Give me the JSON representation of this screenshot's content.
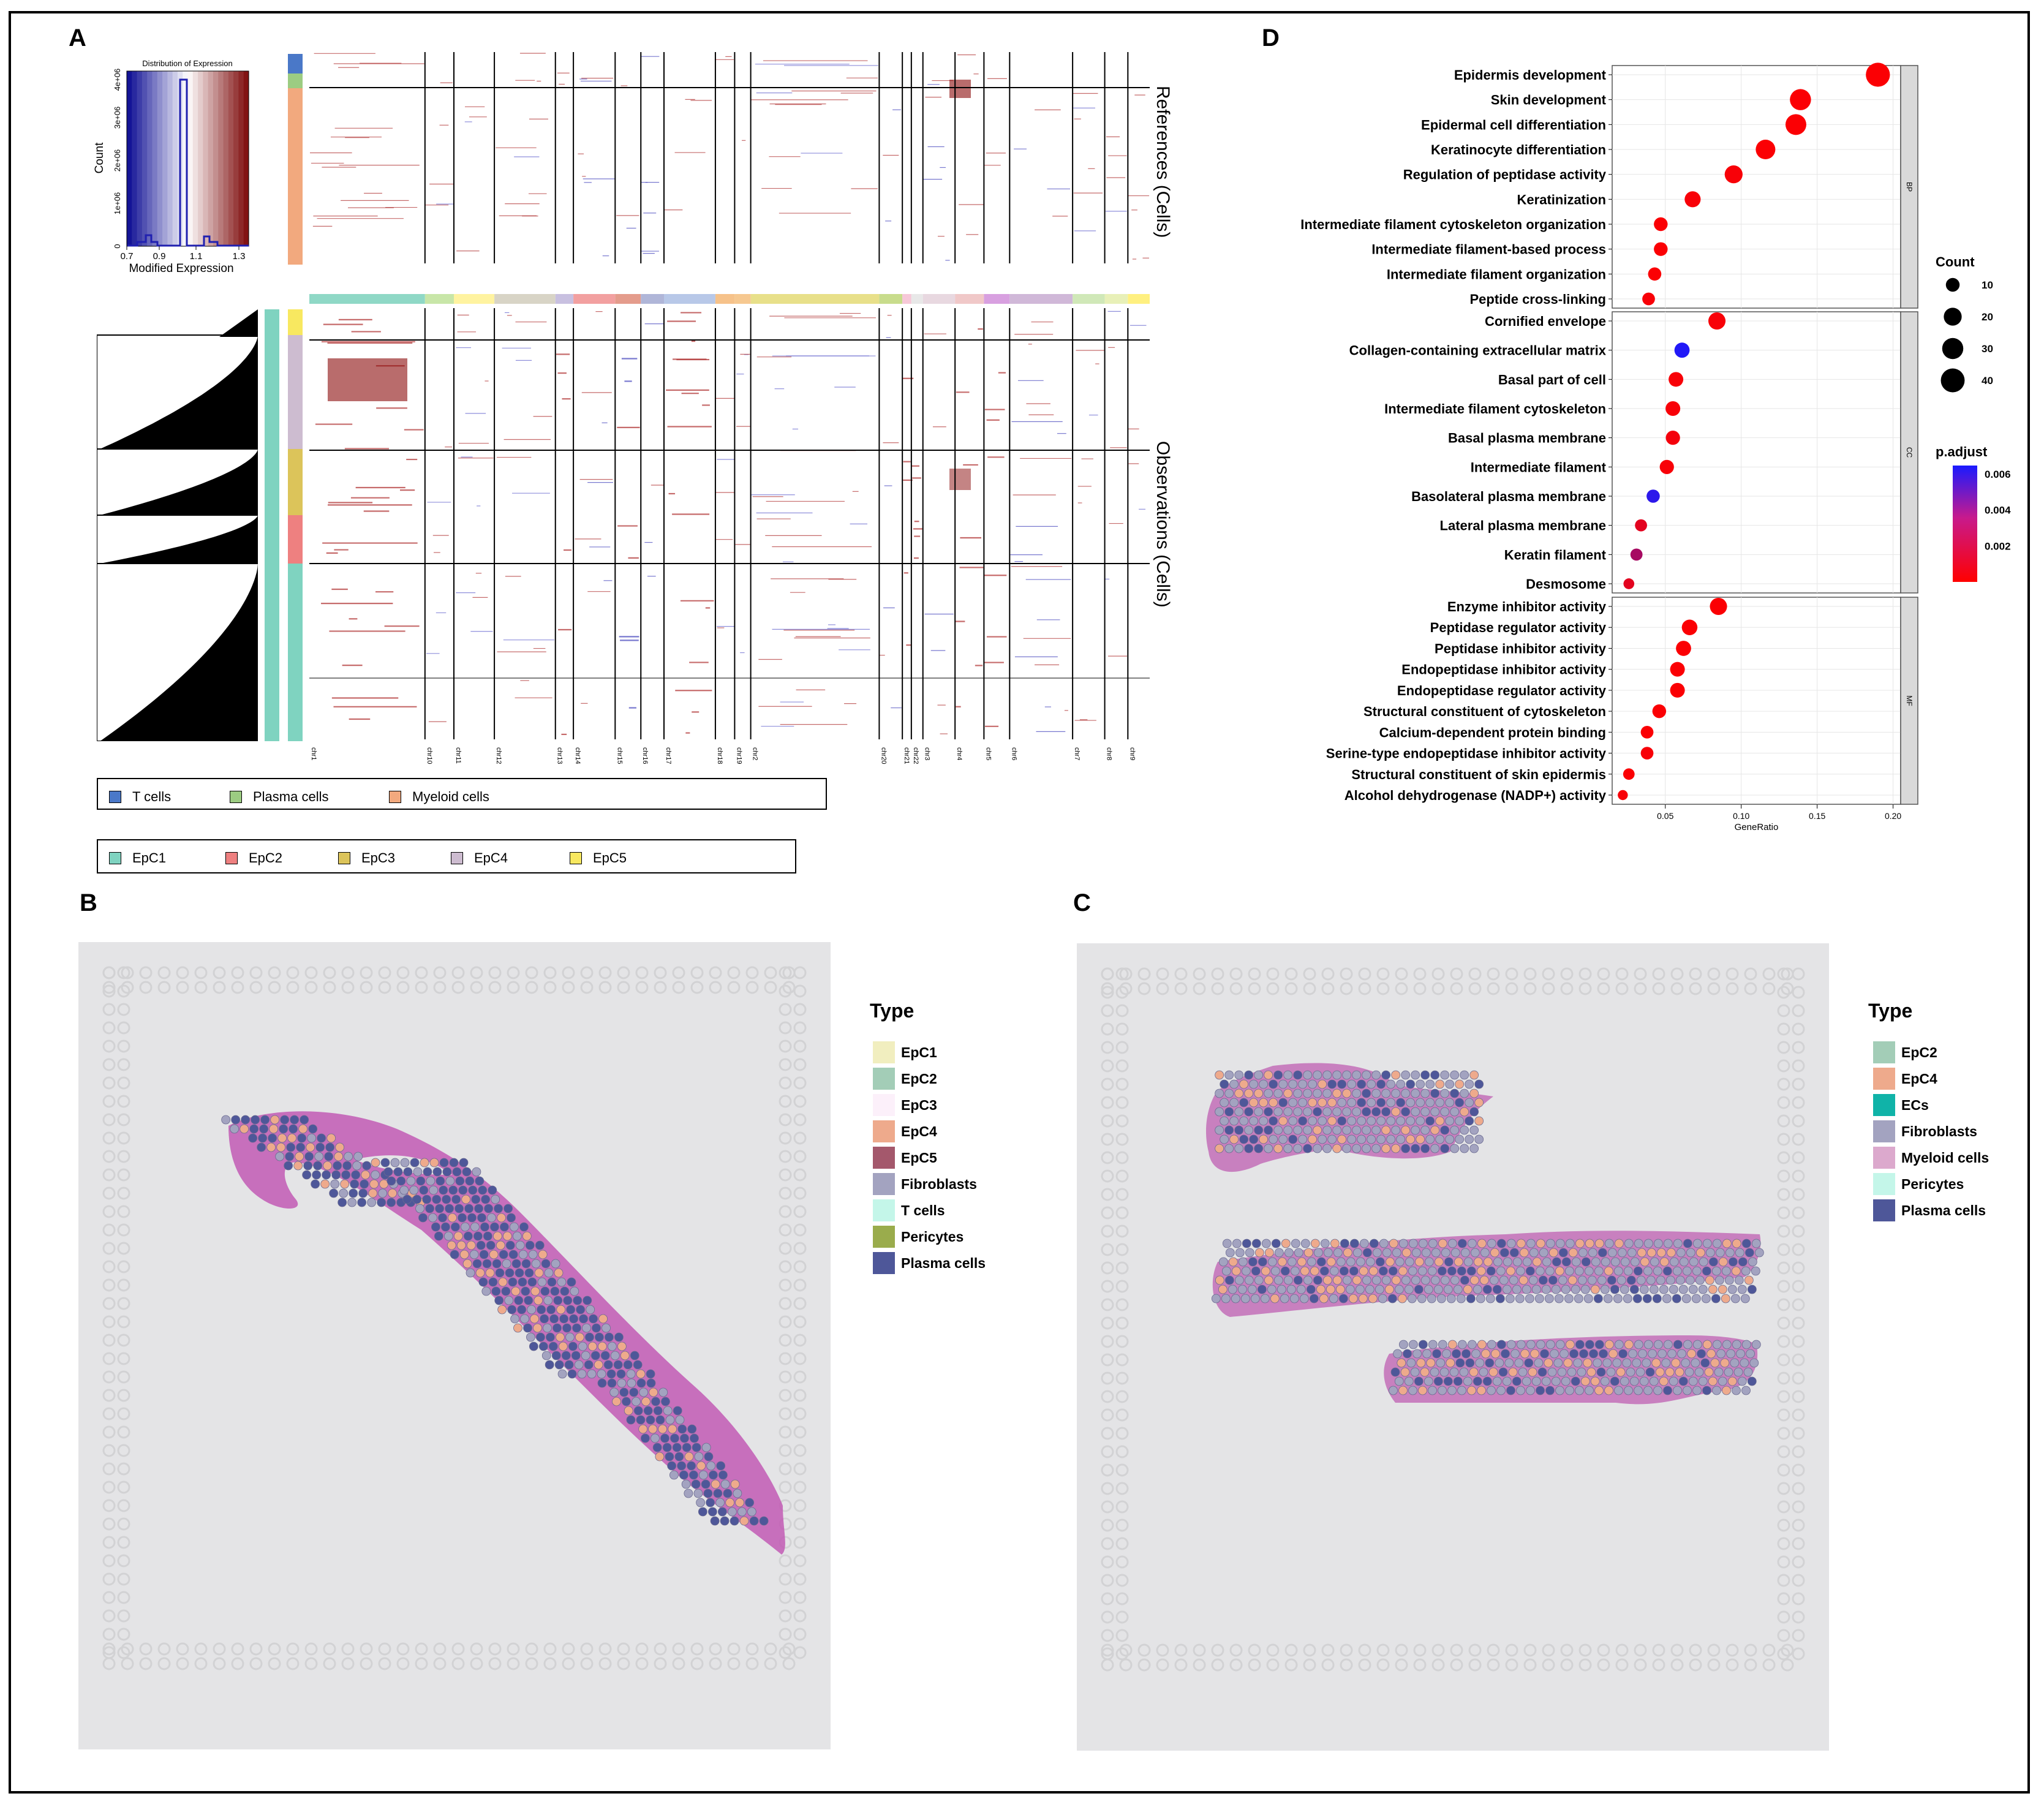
{
  "panel_labels": {
    "a": "A",
    "b": "B",
    "c": "C",
    "d": "D"
  },
  "panel_a": {
    "histogram": {
      "title": "Distribution of Expression",
      "xlabel": "Modified Expression",
      "ylabel": "Count",
      "xticks": [
        "0.7",
        "0.9",
        "1.1",
        "1.3"
      ],
      "yticks": [
        "0",
        "1e+06",
        "2e+06",
        "3e+06",
        "4e+06"
      ]
    },
    "side_labels": {
      "references": "References (Cells)",
      "observations": "Observations (Cells)"
    },
    "chromosomes": [
      "chr1",
      "chr10",
      "chr11",
      "chr12",
      "chr13",
      "chr14",
      "chr15",
      "chr16",
      "chr17",
      "chr18",
      "chr19",
      "chr2",
      "chr20",
      "chr21",
      "chr22",
      "chr3",
      "chr4",
      "chr5",
      "chr6",
      "chr7",
      "chr8",
      "chr9"
    ],
    "reference_legend": [
      {
        "label": "T cells",
        "color": "#4a78c8"
      },
      {
        "label": "Plasma cells",
        "color": "#9ccc82"
      },
      {
        "label": "Myeloid cells",
        "color": "#f2a97e"
      }
    ],
    "observation_legend": [
      {
        "label": "EpC1",
        "color": "#7fd3c0"
      },
      {
        "label": "EpC2",
        "color": "#ee8080"
      },
      {
        "label": "EpC3",
        "color": "#dcc45a"
      },
      {
        "label": "EpC4",
        "color": "#cdbcd0"
      },
      {
        "label": "EpC5",
        "color": "#f8e860"
      }
    ]
  },
  "panel_b": {
    "legend_title": "Type",
    "items": [
      {
        "label": "EpC1",
        "color": "#f1eebf"
      },
      {
        "label": "EpC2",
        "color": "#a3cdb7"
      },
      {
        "label": "EpC3",
        "color": "#fcf0fa"
      },
      {
        "label": "EpC4",
        "color": "#eeaa8c"
      },
      {
        "label": "EpC5",
        "color": "#a4586c"
      },
      {
        "label": "Fibroblasts",
        "color": "#a3a3c0"
      },
      {
        "label": "T cells",
        "color": "#c4f6e9"
      },
      {
        "label": "Pericytes",
        "color": "#9aac4c"
      },
      {
        "label": "Plasma cells",
        "color": "#4e5799"
      }
    ]
  },
  "panel_c": {
    "legend_title": "Type",
    "items": [
      {
        "label": "EpC2",
        "color": "#a3cdb7"
      },
      {
        "label": "EpC4",
        "color": "#eeaa8c"
      },
      {
        "label": "ECs",
        "color": "#10b3a8"
      },
      {
        "label": "Fibroblasts",
        "color": "#a3a3c0"
      },
      {
        "label": "Myeloid cells",
        "color": "#dca9cd"
      },
      {
        "label": "Pericytes",
        "color": "#c4f6e9"
      },
      {
        "label": "Plasma cells",
        "color": "#4e5799"
      }
    ]
  },
  "chart_data": {
    "type": "scatter",
    "xlabel": "GeneRatio",
    "xlim": [
      0.015,
      0.205
    ],
    "xticks": [
      "0.05",
      "0.10",
      "0.15",
      "0.20"
    ],
    "size_legend": {
      "title": "Count",
      "values": [
        10,
        20,
        30,
        40
      ]
    },
    "color_legend": {
      "title": "p.adjust",
      "ticks": [
        "0.002",
        "0.004",
        "0.006"
      ],
      "low": "#ff0000",
      "high": "#1a1aff",
      "range": [
        0.0,
        0.0065
      ]
    },
    "facets": [
      {
        "name": "BP",
        "terms": [
          {
            "term": "Epidermis development",
            "ratio": 0.19,
            "count": 41,
            "padj": 0.0001
          },
          {
            "term": "Skin development",
            "ratio": 0.139,
            "count": 30,
            "padj": 0.0001
          },
          {
            "term": "Epidermal cell differentiation",
            "ratio": 0.136,
            "count": 29,
            "padj": 0.0001
          },
          {
            "term": "Keratinocyte differentiation",
            "ratio": 0.116,
            "count": 25,
            "padj": 0.0001
          },
          {
            "term": "Regulation of peptidase activity",
            "ratio": 0.095,
            "count": 20,
            "padj": 0.0002
          },
          {
            "term": "Keratinization",
            "ratio": 0.068,
            "count": 15,
            "padj": 0.0002
          },
          {
            "term": "Intermediate filament cytoskeleton organization",
            "ratio": 0.047,
            "count": 10,
            "padj": 0.0001
          },
          {
            "term": "Intermediate filament-based process",
            "ratio": 0.047,
            "count": 10,
            "padj": 0.0001
          },
          {
            "term": "Intermediate filament organization",
            "ratio": 0.043,
            "count": 9,
            "padj": 0.0001
          },
          {
            "term": "Peptide cross-linking",
            "ratio": 0.039,
            "count": 8,
            "padj": 0.0002
          }
        ]
      },
      {
        "name": "CC",
        "terms": [
          {
            "term": "Cornified envelope",
            "ratio": 0.084,
            "count": 18,
            "padj": 0.0002
          },
          {
            "term": "Collagen-containing extracellular matrix",
            "ratio": 0.061,
            "count": 13,
            "padj": 0.0063
          },
          {
            "term": "Basal part of cell",
            "ratio": 0.057,
            "count": 12,
            "padj": 0.0002
          },
          {
            "term": "Intermediate filament cytoskeleton",
            "ratio": 0.055,
            "count": 12,
            "padj": 0.0002
          },
          {
            "term": "Basal plasma membrane",
            "ratio": 0.055,
            "count": 11,
            "padj": 0.0003
          },
          {
            "term": "Intermediate filament",
            "ratio": 0.051,
            "count": 11,
            "padj": 0.0002
          },
          {
            "term": "Basolateral plasma membrane",
            "ratio": 0.042,
            "count": 9,
            "padj": 0.006
          },
          {
            "term": "Lateral plasma membrane",
            "ratio": 0.034,
            "count": 7,
            "padj": 0.0008
          },
          {
            "term": "Keratin filament",
            "ratio": 0.031,
            "count": 7,
            "padj": 0.0025
          },
          {
            "term": "Desmosome",
            "ratio": 0.026,
            "count": 5,
            "padj": 0.0008
          }
        ]
      },
      {
        "name": "MF",
        "terms": [
          {
            "term": "Enzyme inhibitor activity",
            "ratio": 0.085,
            "count": 18,
            "padj": 0.0001
          },
          {
            "term": "Peptidase regulator activity",
            "ratio": 0.066,
            "count": 14,
            "padj": 0.0001
          },
          {
            "term": "Peptidase inhibitor activity",
            "ratio": 0.062,
            "count": 13,
            "padj": 0.0001
          },
          {
            "term": "Endopeptidase inhibitor activity",
            "ratio": 0.058,
            "count": 12,
            "padj": 0.0001
          },
          {
            "term": "Endopeptidase regulator activity",
            "ratio": 0.058,
            "count": 12,
            "padj": 0.0001
          },
          {
            "term": "Structural constituent of cytoskeleton",
            "ratio": 0.046,
            "count": 10,
            "padj": 0.0001
          },
          {
            "term": "Calcium-dependent protein binding",
            "ratio": 0.038,
            "count": 8,
            "padj": 0.0001
          },
          {
            "term": "Serine-type endopeptidase inhibitor activity",
            "ratio": 0.038,
            "count": 8,
            "padj": 0.0002
          },
          {
            "term": "Structural constituent of skin epidermis",
            "ratio": 0.026,
            "count": 6,
            "padj": 0.0001
          },
          {
            "term": "Alcohol dehydrogenase (NADP+) activity",
            "ratio": 0.022,
            "count": 4,
            "padj": 0.0002
          }
        ]
      }
    ]
  }
}
